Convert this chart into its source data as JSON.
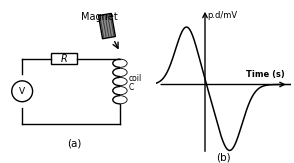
{
  "fig_width": 2.94,
  "fig_height": 1.63,
  "dpi": 100,
  "bg_color": "#ffffff",
  "label_a": "(a)",
  "label_b": "(b)",
  "magnet_label": "Magnet",
  "ylabel": "p.d/mV",
  "xlabel": "Time (s)",
  "coil_label": "coil",
  "coil_sublabel": "C",
  "R_label": "R",
  "V_label": "V",
  "lw": 1.0
}
